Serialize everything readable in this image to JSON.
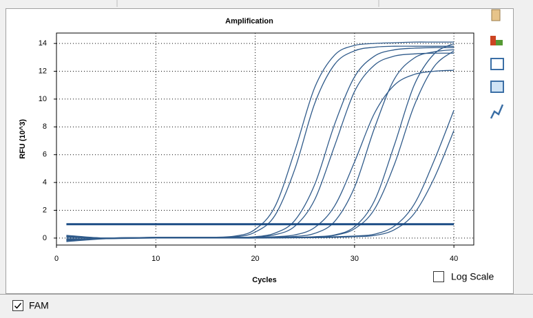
{
  "chart_data": {
    "type": "line",
    "title": "Amplification",
    "xlabel": "Cycles",
    "ylabel": "RFU (10^3)",
    "x": [
      1,
      5,
      10,
      15,
      18,
      20,
      22,
      24,
      26,
      28,
      30,
      32,
      34,
      36,
      38,
      40
    ],
    "color": "#2f5a8a",
    "series": [
      {
        "values": [
          -0.1,
          0,
          0.05,
          0.05,
          0.15,
          0.63,
          2.28,
          6.3,
          10.85,
          13.17,
          13.86,
          14.0,
          14.05,
          14.1,
          14.1,
          14.1
        ]
      },
      {
        "values": [
          0.2,
          0,
          0.05,
          0.05,
          0.1,
          0.43,
          1.64,
          4.98,
          9.7,
          12.5,
          13.47,
          13.73,
          13.8,
          13.8,
          13.8,
          13.8
        ]
      },
      {
        "values": [
          -0.2,
          0,
          0.05,
          0.05,
          0.05,
          0.1,
          0.36,
          1.28,
          3.87,
          8.2,
          11.6,
          13.09,
          13.54,
          13.66,
          13.7,
          13.7
        ]
      },
      {
        "values": [
          0.1,
          0,
          0.05,
          0.05,
          0.05,
          0.08,
          0.24,
          0.86,
          2.78,
          6.65,
          10.55,
          12.44,
          13.09,
          13.25,
          13.3,
          13.3
        ]
      },
      {
        "values": [
          -0.15,
          0,
          0.05,
          0.05,
          0.05,
          0.05,
          0.1,
          0.23,
          0.77,
          2.32,
          5.48,
          8.97,
          11.0,
          11.77,
          12.0,
          12.07
        ]
      },
      {
        "values": [
          0.15,
          0,
          0.05,
          0.05,
          0.05,
          0.05,
          0.08,
          0.12,
          0.34,
          1.2,
          3.66,
          7.9,
          11.43,
          12.95,
          13.4,
          13.55
        ]
      },
      {
        "values": [
          -0.25,
          -0.05,
          0.02,
          0.03,
          0.03,
          0.04,
          0.05,
          0.06,
          0.1,
          0.23,
          0.82,
          2.68,
          6.68,
          11.0,
          13.24,
          14.0
        ]
      },
      {
        "values": [
          0.05,
          0,
          0.02,
          0.03,
          0.03,
          0.04,
          0.05,
          0.06,
          0.08,
          0.2,
          0.67,
          2.07,
          5.28,
          9.52,
          12.33,
          13.47
        ]
      },
      {
        "values": [
          0.1,
          0,
          0.02,
          0.02,
          0.02,
          0.02,
          0.02,
          0.03,
          0.05,
          0.1,
          0.15,
          0.28,
          0.86,
          2.43,
          5.56,
          9.2
        ]
      },
      {
        "values": [
          -0.05,
          -0.05,
          0,
          0,
          0,
          0,
          0.01,
          0.02,
          0.03,
          0.05,
          0.1,
          0.19,
          0.6,
          1.76,
          4.29,
          7.74
        ]
      }
    ],
    "threshold": 1,
    "threshold_color": "#1b4c85",
    "xlim": [
      0,
      42
    ],
    "ylim": [
      -0.5,
      14.75
    ],
    "xticks": [
      0,
      10,
      20,
      30,
      40
    ],
    "yticks": [
      0,
      2,
      4,
      6,
      8,
      10,
      12,
      14
    ],
    "grid": true
  },
  "controls": {
    "log_scale": {
      "label": "Log Scale",
      "checked": false
    },
    "fluorophore": {
      "label": "FAM",
      "checked": true
    }
  }
}
